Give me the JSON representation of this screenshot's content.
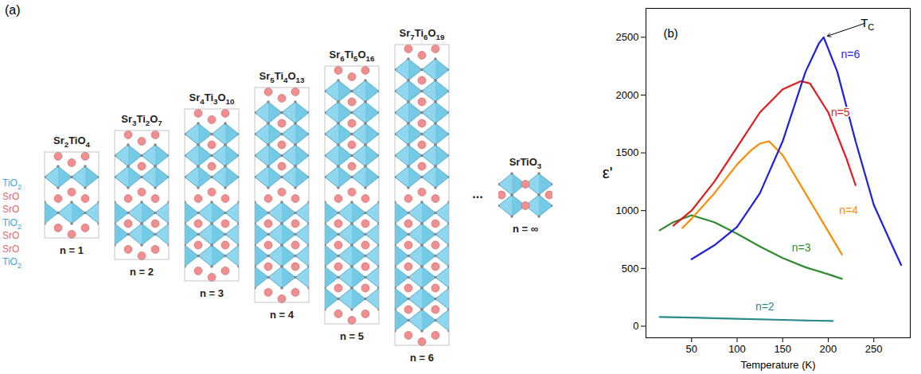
{
  "diagram": {
    "label": "(a)",
    "layer_labels": {
      "texts": [
        "TiO2",
        "SrO",
        "SrO",
        "TiO2",
        "SrO",
        "SrO",
        "TiO2"
      ],
      "colors": [
        "#4aa3d8",
        "#e06c6c",
        "#e06c6c",
        "#4aa3d8",
        "#e06c6c",
        "#e06c6c",
        "#4aa3d8"
      ]
    },
    "structures": [
      {
        "formula": "Sr2TiO4",
        "label": "n = 1",
        "layers": 1
      },
      {
        "formula": "Sr3Ti2O7",
        "label": "n = 2",
        "layers": 2
      },
      {
        "formula": "Sr4Ti3O10",
        "label": "n = 3",
        "layers": 3
      },
      {
        "formula": "Sr5Ti4O13",
        "label": "n = 4",
        "layers": 4
      },
      {
        "formula": "Sr6Ti5O16",
        "label": "n = 5",
        "layers": 5
      },
      {
        "formula": "Sr7Ti6O19",
        "label": "n = 6",
        "layers": 6
      }
    ],
    "ellipsis": "...",
    "bulk": {
      "formula": "SrTiO3",
      "label": "n = ∞"
    }
  },
  "chart_data": {
    "type": "line",
    "panel_label": "(b)",
    "xlabel": "Temperature (K)",
    "ylabel": "ε'",
    "xlim": [
      0,
      290
    ],
    "xticks": [
      50,
      100,
      150,
      200,
      250
    ],
    "ylim": [
      -100,
      2750
    ],
    "yticks": [
      0,
      500,
      1000,
      1500,
      2000,
      2500
    ],
    "series": [
      {
        "name": "n=2",
        "color": "#2a8a8a",
        "label_x": 120,
        "label_y": 170,
        "x": [
          15,
          50,
          100,
          150,
          205
        ],
        "values": [
          80,
          75,
          65,
          55,
          45
        ]
      },
      {
        "name": "n=3",
        "color": "#2e8b2e",
        "label_x": 160,
        "label_y": 680,
        "x": [
          15,
          30,
          50,
          75,
          100,
          125,
          150,
          175,
          200,
          215
        ],
        "values": [
          830,
          900,
          960,
          900,
          800,
          690,
          590,
          510,
          450,
          410
        ]
      },
      {
        "name": "n=4",
        "color": "#ff8c00",
        "label_x": 212,
        "label_y": 1000,
        "x": [
          40,
          50,
          75,
          100,
          115,
          125,
          135,
          150,
          175,
          200,
          215
        ],
        "values": [
          850,
          930,
          1150,
          1400,
          1520,
          1580,
          1600,
          1480,
          1150,
          820,
          620
        ]
      },
      {
        "name": "n=5",
        "color": "#e41a1c",
        "label_x": 203,
        "label_y": 1850,
        "x": [
          30,
          50,
          75,
          100,
          125,
          150,
          170,
          180,
          200,
          220,
          230
        ],
        "values": [
          870,
          1000,
          1250,
          1550,
          1850,
          2050,
          2120,
          2100,
          1850,
          1450,
          1220
        ]
      },
      {
        "name": "n=6",
        "color": "#1f1fe0",
        "label_x": 214,
        "label_y": 2350,
        "x": [
          50,
          75,
          100,
          125,
          150,
          175,
          190,
          195,
          210,
          230,
          250,
          270,
          280
        ],
        "values": [
          580,
          700,
          860,
          1150,
          1600,
          2200,
          2450,
          2500,
          2200,
          1600,
          1050,
          700,
          530
        ]
      }
    ],
    "annotations": [
      {
        "text": "T",
        "subscript": "C",
        "x": 240,
        "y": 2620,
        "arrow_to_x": 199,
        "arrow_to_y": 2510
      }
    ]
  }
}
